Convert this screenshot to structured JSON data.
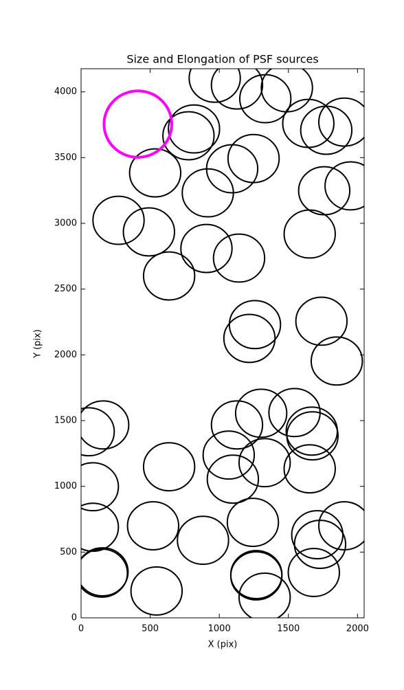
{
  "chart_data": {
    "type": "ellipse",
    "title": "Size and Elongation of PSF sources",
    "xlabel": "X (pix)",
    "ylabel": "Y (pix)",
    "xlim": [
      0,
      2048
    ],
    "ylim": [
      0,
      4176
    ],
    "xticks": [
      0,
      500,
      1000,
      1500,
      2000
    ],
    "yticks": [
      0,
      500,
      1000,
      1500,
      2000,
      2500,
      3000,
      3500,
      4000
    ],
    "series": [
      {
        "color": "#000000",
        "linewidth": 2,
        "width": 370,
        "height": 365,
        "x": [
          967,
          1128,
          1333,
          1489,
          817,
          777,
          1644,
          1774,
          1905,
          1248,
          1093,
          917,
          536,
          1759,
          1950,
          271,
          491,
          1654,
          907,
          1143,
          637,
          1258,
          1218,
          1739,
          1850,
          160,
          55,
          1128,
          1303,
          1544,
          1669,
          1674,
          1068,
          1328,
          1098,
          1654,
          637,
          85,
          85,
          521,
          882,
          1243,
          1709,
          1729,
          1905,
          155,
          150,
          546,
          1268,
          1268,
          1328,
          1684
        ],
        "y": [
          4104,
          4052,
          3948,
          4031,
          3718,
          3666,
          3760,
          3708,
          3770,
          3493,
          3415,
          3232,
          3384,
          3248,
          3285,
          3023,
          2935,
          2919,
          2809,
          2736,
          2600,
          2230,
          2125,
          2256,
          1953,
          1467,
          1415,
          1467,
          1556,
          1561,
          1420,
          1384,
          1238,
          1180,
          1055,
          1133,
          1149,
          997,
          689,
          700,
          590,
          726,
          632,
          559,
          700,
          350,
          340,
          204,
          329,
          319,
          157,
          345
        ]
      },
      {
        "color": "#ff00ff",
        "linewidth": 4,
        "width": 490,
        "height": 505,
        "x": [
          411
        ],
        "y": [
          3755
        ]
      }
    ]
  }
}
